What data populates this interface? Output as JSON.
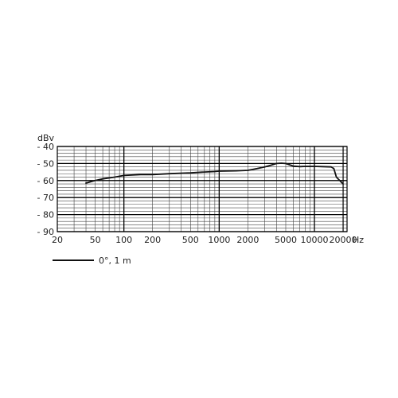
{
  "chart_data": {
    "type": "line",
    "title": "",
    "xlabel": "",
    "x_unit": "Hz",
    "ylabel": "dBv",
    "x_scale": "log",
    "xlim": [
      20,
      22000
    ],
    "ylim": [
      -90,
      -40
    ],
    "x_ticks": [
      20,
      50,
      100,
      200,
      500,
      1000,
      2000,
      5000,
      10000,
      20000
    ],
    "x_tick_labels": [
      "20",
      "50",
      "100",
      "200",
      "500",
      "1000",
      "2000",
      "5000",
      "10000",
      "20000"
    ],
    "y_ticks": [
      -40,
      -50,
      -60,
      -70,
      -80,
      -90
    ],
    "y_tick_labels": [
      "- 40",
      "- 50",
      "- 60",
      "- 70",
      "- 80",
      "- 90"
    ],
    "grid": true,
    "legend_position": "bottom-left",
    "series": [
      {
        "name": "0°, 1 m",
        "color": "#111111",
        "x": [
          40,
          50,
          60,
          80,
          100,
          150,
          200,
          300,
          500,
          700,
          900,
          1000,
          1500,
          2000,
          2500,
          3000,
          3500,
          4000,
          4500,
          5000,
          5500,
          6000,
          7000,
          8000,
          10000,
          12000,
          15000,
          16000,
          17000,
          20000
        ],
        "y": [
          -61.5,
          -60,
          -59,
          -58,
          -57,
          -56.5,
          -56.5,
          -56,
          -55.5,
          -55,
          -54.7,
          -54.5,
          -54.3,
          -54,
          -53,
          -52,
          -51,
          -50,
          -49.8,
          -50,
          -50.8,
          -51.5,
          -51.8,
          -51.7,
          -51.7,
          -51.8,
          -52,
          -53,
          -58,
          -62
        ]
      }
    ]
  }
}
